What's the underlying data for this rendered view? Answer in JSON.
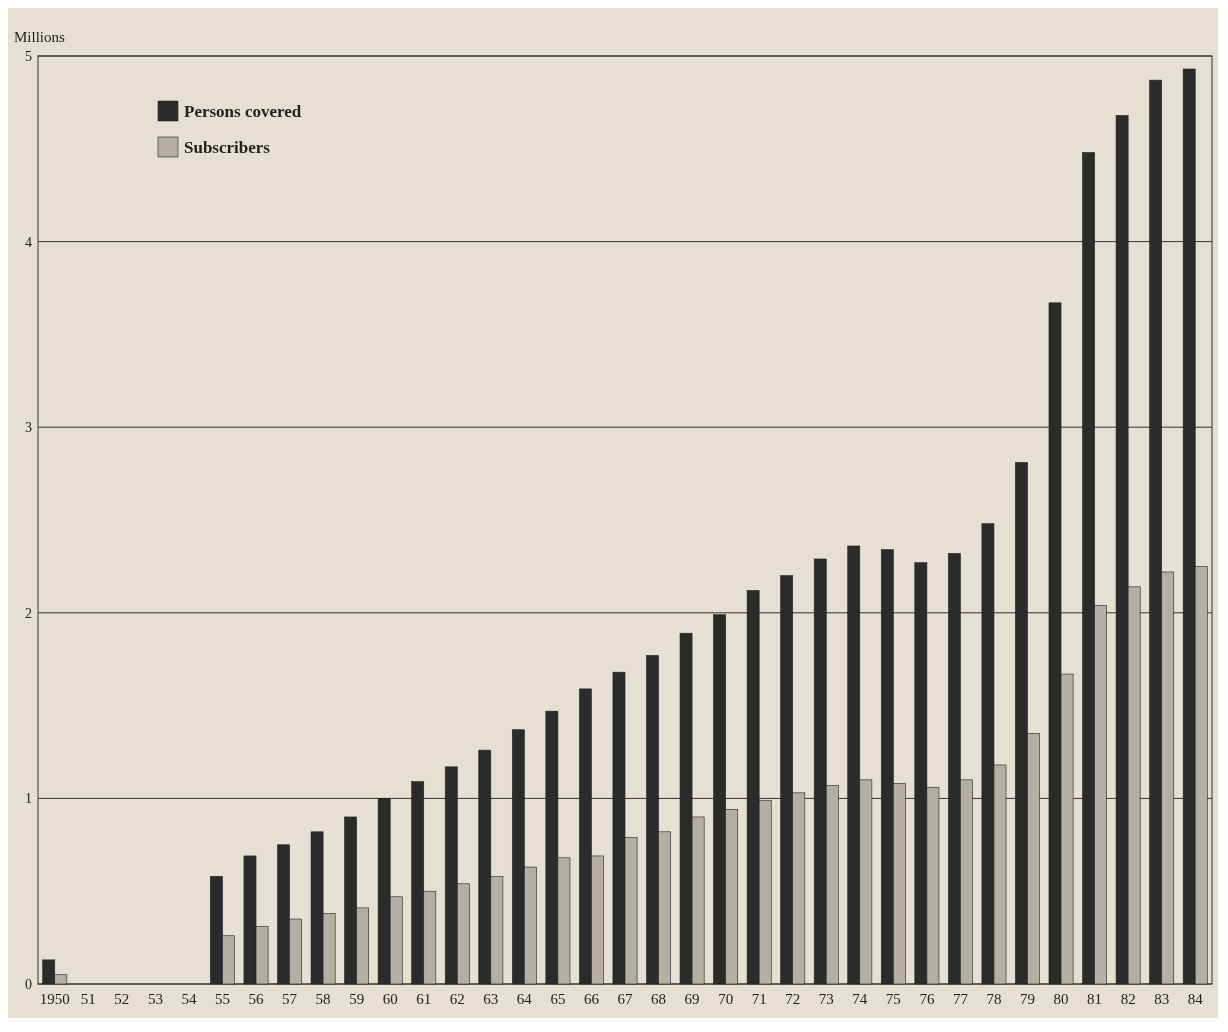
{
  "chart_data": {
    "type": "bar",
    "ylabel": "Millions",
    "categories": [
      "1950",
      "51",
      "52",
      "53",
      "54",
      "55",
      "56",
      "57",
      "58",
      "59",
      "60",
      "61",
      "62",
      "63",
      "64",
      "65",
      "66",
      "67",
      "68",
      "69",
      "70",
      "71",
      "72",
      "73",
      "74",
      "75",
      "76",
      "77",
      "78",
      "79",
      "80",
      "81",
      "82",
      "83",
      "84"
    ],
    "series": [
      {
        "name": "Persons covered",
        "color": "#2b2b2b",
        "values": [
          0.13,
          null,
          null,
          null,
          null,
          0.58,
          0.69,
          0.75,
          0.82,
          0.9,
          1.0,
          1.09,
          1.17,
          1.26,
          1.37,
          1.47,
          1.59,
          1.68,
          1.77,
          1.89,
          1.99,
          2.12,
          2.2,
          2.29,
          2.36,
          2.34,
          2.27,
          2.32,
          2.48,
          2.81,
          3.67,
          4.48,
          4.68,
          4.87,
          4.93
        ]
      },
      {
        "name": "Subscribers",
        "color": "#b5afa3",
        "values": [
          0.05,
          null,
          null,
          null,
          null,
          0.26,
          0.31,
          0.35,
          0.38,
          0.41,
          0.47,
          0.5,
          0.54,
          0.58,
          0.63,
          0.68,
          0.69,
          0.79,
          0.82,
          0.9,
          0.94,
          0.99,
          1.03,
          1.07,
          1.1,
          1.08,
          1.06,
          1.1,
          1.18,
          1.35,
          1.67,
          2.04,
          2.14,
          2.22,
          2.25
        ]
      }
    ],
    "ylim": [
      0,
      5
    ],
    "yticks": [
      0,
      1,
      2,
      3,
      4,
      5
    ],
    "grid": "y",
    "legend": "top left"
  }
}
